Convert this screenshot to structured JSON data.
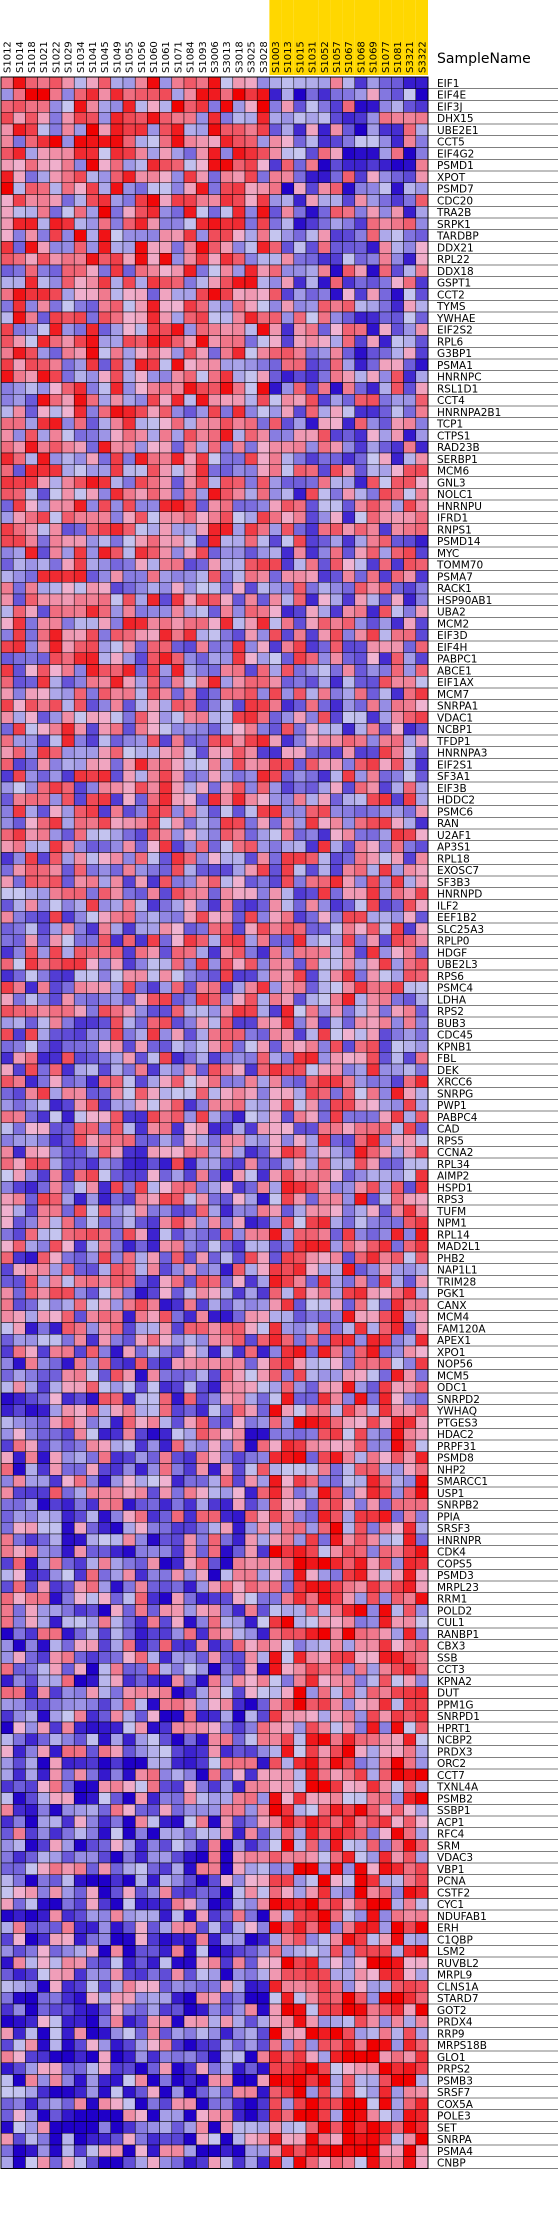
{
  "chart_data": {
    "type": "heatmap",
    "header_label": "SampleName",
    "columns": [
      "S1012",
      "S1014",
      "S1018",
      "S1021",
      "S1022",
      "S1029",
      "S1034",
      "S1041",
      "S1045",
      "S1049",
      "S1055",
      "S1056",
      "S1060",
      "S1061",
      "S1071",
      "S1084",
      "S1093",
      "S3006",
      "S3013",
      "S3018",
      "S3025",
      "S3028",
      "S1003",
      "S1013",
      "S1015",
      "S1031",
      "S1052",
      "S1057",
      "S1067",
      "S1068",
      "S1069",
      "S1077",
      "S1081",
      "S3321",
      "S3322"
    ],
    "highlighted_columns": [
      "S1003",
      "S1013",
      "S1015",
      "S1031",
      "S1052",
      "S1057",
      "S1067",
      "S1068",
      "S1069",
      "S1077",
      "S1081",
      "S3321",
      "S3322"
    ],
    "rows": [
      "EIF1",
      "EIF4E",
      "EIF3J",
      "DHX15",
      "UBE2E1",
      "CCT5",
      "EIF4G2",
      "PSMD1",
      "XPOT",
      "PSMD7",
      "CDC20",
      "TRA2B",
      "SRPK1",
      "TARDBP",
      "DDX21",
      "RPL22",
      "DDX18",
      "GSPT1",
      "CCT2",
      "TYMS",
      "YWHAE",
      "EIF2S2",
      "RPL6",
      "G3BP1",
      "PSMA1",
      "HNRNPC",
      "RSL1D1",
      "CCT4",
      "HNRNPA2B1",
      "TCP1",
      "CTPS1",
      "RAD23B",
      "SERBP1",
      "MCM6",
      "GNL3",
      "NOLC1",
      "HNRNPU",
      "IFRD1",
      "RNPS1",
      "PSMD14",
      "MYC",
      "TOMM70",
      "PSMA7",
      "RACK1",
      "HSP90AB1",
      "UBA2",
      "MCM2",
      "EIF3D",
      "EIF4H",
      "PABPC1",
      "ABCE1",
      "EIF1AX",
      "MCM7",
      "SNRPA1",
      "VDAC1",
      "NCBP1",
      "TFDP1",
      "HNRNPA3",
      "EIF2S1",
      "SF3A1",
      "EIF3B",
      "HDDC2",
      "PSMC6",
      "RAN",
      "U2AF1",
      "AP3S1",
      "RPL18",
      "EXOSC7",
      "SF3B3",
      "HNRNPD",
      "ILF2",
      "EEF1B2",
      "SLC25A3",
      "RPLP0",
      "HDGF",
      "UBE2L3",
      "RPS6",
      "PSMC4",
      "LDHA",
      "RPS2",
      "BUB3",
      "CDC45",
      "KPNB1",
      "FBL",
      "DEK",
      "XRCC6",
      "SNRPG",
      "PWP1",
      "PABPC4",
      "CAD",
      "RPS5",
      "CCNA2",
      "RPL34",
      "AIMP2",
      "HSPD1",
      "RPS3",
      "TUFM",
      "NPM1",
      "RPL14",
      "MAD2L1",
      "PHB2",
      "NAP1L1",
      "TRIM28",
      "PGK1",
      "CANX",
      "MCM4",
      "FAM120A",
      "APEX1",
      "XPO1",
      "NOP56",
      "MCM5",
      "ODC1",
      "SNRPD2",
      "YWHAQ",
      "PTGES3",
      "HDAC2",
      "PRPF31",
      "PSMD8",
      "NHP2",
      "SMARCC1",
      "USP1",
      "SNRPB2",
      "PPIA",
      "SRSF3",
      "HNRNPR",
      "CDK4",
      "COPS5",
      "PSMD3",
      "MRPL23",
      "RRM1",
      "POLD2",
      "CUL1",
      "RANBP1",
      "CBX3",
      "SSB",
      "CCT3",
      "KPNA2",
      "DUT",
      "PPM1G",
      "SNRPD1",
      "HPRT1",
      "NCBP2",
      "PRDX3",
      "ORC2",
      "CCT7",
      "TXNL4A",
      "PSMB2",
      "SSBP1",
      "ACP1",
      "RFC4",
      "SRM",
      "VDAC3",
      "VBP1",
      "PCNA",
      "CSTF2",
      "CYC1",
      "NDUFAB1",
      "ERH",
      "C1QBP",
      "LSM2",
      "RUVBL2",
      "MRPL9",
      "CLNS1A",
      "STARD7",
      "GOT2",
      "PRDX4",
      "RRP9",
      "MRPS18B",
      "GLO1",
      "PRPS2",
      "PSMB3",
      "SRSF7",
      "COX5A",
      "POLE3",
      "SET",
      "SNRPA",
      "PSMA4",
      "CNBP"
    ],
    "color_scale": {
      "low": "#1f00c8",
      "mid_low": "#c8c8f0",
      "mid_high": "#f0b4d2",
      "high": "#f00000"
    },
    "value_range": [
      -2,
      2
    ],
    "seed": 20240611
  }
}
